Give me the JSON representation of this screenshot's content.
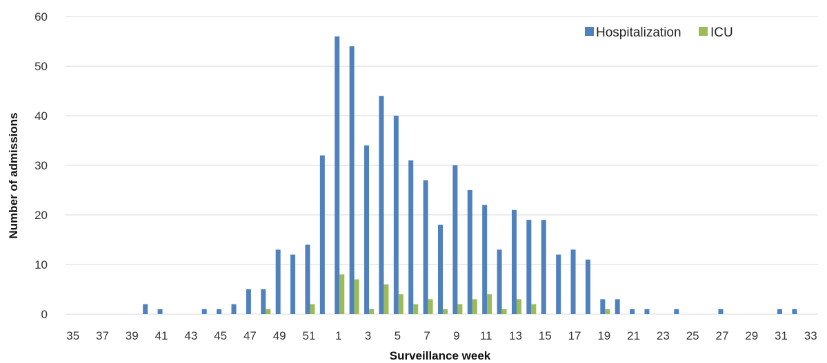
{
  "chart_data": {
    "type": "bar",
    "title": "",
    "xlabel": "Surveillance week",
    "ylabel": "Number of admissions",
    "ylim": [
      0,
      60
    ],
    "yticks": [
      0,
      10,
      20,
      30,
      40,
      50,
      60
    ],
    "grid": "horizontal",
    "legend_position": "top-right",
    "categories": [
      "35",
      "36",
      "37",
      "38",
      "39",
      "40",
      "41",
      "42",
      "43",
      "44",
      "45",
      "46",
      "47",
      "48",
      "49",
      "50",
      "51",
      "52",
      "1",
      "2",
      "3",
      "4",
      "5",
      "6",
      "7",
      "8",
      "9",
      "10",
      "11",
      "12",
      "13",
      "14",
      "15",
      "16",
      "17",
      "18",
      "19",
      "20",
      "21",
      "22",
      "23",
      "24",
      "25",
      "26",
      "27",
      "28",
      "29",
      "30",
      "31",
      "32",
      "33"
    ],
    "tick_labels": [
      "35",
      "37",
      "39",
      "41",
      "43",
      "45",
      "47",
      "49",
      "51",
      "1",
      "3",
      "5",
      "7",
      "9",
      "11",
      "13",
      "15",
      "17",
      "19",
      "21",
      "23",
      "25",
      "27",
      "29",
      "31",
      "33"
    ],
    "series": [
      {
        "name": "Hospitalization",
        "color": "#4f81bd",
        "values": [
          0,
          0,
          0,
          0,
          0,
          2,
          1,
          0,
          0,
          1,
          1,
          2,
          5,
          5,
          13,
          12,
          14,
          32,
          56,
          54,
          34,
          44,
          40,
          31,
          27,
          18,
          30,
          25,
          22,
          13,
          21,
          19,
          19,
          12,
          13,
          11,
          3,
          3,
          1,
          1,
          0,
          1,
          0,
          0,
          1,
          0,
          0,
          0,
          1,
          1,
          0
        ]
      },
      {
        "name": "ICU",
        "color": "#9bbb59",
        "values": [
          0,
          0,
          0,
          0,
          0,
          0,
          0,
          0,
          0,
          0,
          0,
          0,
          0,
          1,
          0,
          0,
          2,
          0,
          8,
          7,
          1,
          6,
          4,
          2,
          3,
          1,
          2,
          3,
          4,
          1,
          3,
          2,
          0,
          0,
          0,
          0,
          1,
          0,
          0,
          0,
          0,
          0,
          0,
          0,
          0,
          0,
          0,
          0,
          0,
          0,
          0
        ]
      }
    ]
  }
}
